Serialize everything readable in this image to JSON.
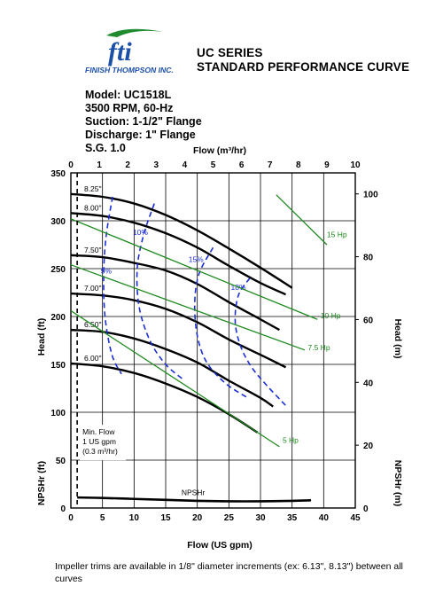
{
  "logo": {
    "mark_text": "fti",
    "company": "FINISH THOMPSON INC."
  },
  "header": {
    "series": "UC SERIES",
    "title": "STANDARD PERFORMANCE CURVE"
  },
  "specs": [
    "Model: UC1518L",
    "3500 RPM, 60-Hz",
    "Suction: 1-1/2\" Flange",
    "Discharge: 1\" Flange",
    "S.G. 1.0"
  ],
  "footnote": "Impeller trims are available in 1/8\" diameter increments (ex: 6.13\", 8.13\") between all curves",
  "colors": {
    "curve": "#000000",
    "efficiency": "#1a2fd4",
    "power": "#1e8a1e"
  },
  "chart_data": {
    "type": "line",
    "xlabel": "Flow (US gpm)",
    "x2label": "Flow (m³/hr)",
    "ylabel": "Head (ft)",
    "y2label": "Head (m)",
    "npsh_label": "NPSHr (ft)",
    "npsh_label_m": "NPSHr (m)",
    "xlim": [
      0,
      45
    ],
    "ylim": [
      0,
      350
    ],
    "x2lim": [
      0,
      10
    ],
    "y2lim": [
      0,
      106.7
    ],
    "x_ticks": [
      0,
      5,
      10,
      15,
      20,
      25,
      30,
      35,
      40,
      45
    ],
    "y_ticks": [
      0,
      50,
      100,
      150,
      200,
      250,
      300,
      350
    ],
    "x2_ticks": [
      0,
      1,
      2,
      3,
      4,
      5,
      6,
      7,
      8,
      9,
      10
    ],
    "y2_ticks": [
      20,
      40,
      60,
      80,
      100
    ],
    "grid": true,
    "impeller_curves": [
      {
        "name": "8.25\"",
        "x": [
          0,
          5,
          10,
          15,
          20,
          25,
          30,
          35
        ],
        "y": [
          328,
          325,
          318,
          306,
          290,
          271,
          251,
          230
        ]
      },
      {
        "name": "8.00\"",
        "x": [
          0,
          5,
          10,
          15,
          20,
          25,
          30,
          34
        ],
        "y": [
          308,
          305,
          298,
          287,
          272,
          253,
          235,
          223
        ]
      },
      {
        "name": "7.50\"",
        "x": [
          0,
          5,
          10,
          15,
          20,
          25,
          30,
          33
        ],
        "y": [
          264,
          262,
          256,
          248,
          234,
          215,
          197,
          186
        ]
      },
      {
        "name": "7.00\"",
        "x": [
          0,
          5,
          10,
          15,
          20,
          25,
          30,
          34
        ],
        "y": [
          224,
          222,
          217,
          208,
          194,
          176,
          160,
          147
        ]
      },
      {
        "name": "6.50\"",
        "x": [
          0,
          5,
          10,
          15,
          20,
          25,
          30,
          32
        ],
        "y": [
          186,
          184,
          177,
          166,
          152,
          133,
          115,
          106
        ]
      },
      {
        "name": "6.00\"",
        "x": [
          0,
          5,
          10,
          15,
          20,
          25,
          29.5
        ],
        "y": [
          151,
          148,
          141,
          130,
          116,
          98,
          79
        ]
      }
    ],
    "efficiency_curves": [
      {
        "name": "5%",
        "x": [
          6.6,
          5.6,
          5.2,
          5.4,
          6.5,
          8.0
        ],
        "y": [
          325,
          285,
          245,
          200,
          160,
          140
        ]
      },
      {
        "name": "10%",
        "x": [
          13.2,
          11.5,
          10.5,
          10.8,
          12.5,
          15.0,
          18.0
        ],
        "y": [
          318,
          285,
          250,
          210,
          175,
          150,
          133
        ]
      },
      {
        "name": "15%",
        "x": [
          22.5,
          20.3,
          19.6,
          20.0,
          21.5,
          24.5,
          28.0
        ],
        "y": [
          272,
          245,
          215,
          180,
          152,
          130,
          115
        ]
      },
      {
        "name": "18%",
        "x": [
          28.3,
          26.5,
          26.0,
          26.8,
          28.5,
          31.0,
          34.0
        ],
        "y": [
          240,
          222,
          195,
          170,
          148,
          128,
          107
        ]
      }
    ],
    "power_lines": [
      {
        "name": "15 Hp",
        "x": [
          32.5,
          40.5
        ],
        "y": [
          327,
          275
        ]
      },
      {
        "name": "10 Hp",
        "x": [
          0,
          39
        ],
        "y": [
          302,
          197
        ]
      },
      {
        "name": "7.5 Hp",
        "x": [
          0,
          37
        ],
        "y": [
          254,
          165
        ]
      },
      {
        "name": "5 Hp",
        "x": [
          0,
          33
        ],
        "y": [
          206,
          64
        ]
      }
    ],
    "npshr": {
      "name": "NPSHr",
      "x": [
        1,
        5,
        10,
        15,
        20,
        25,
        30,
        35,
        38
      ],
      "y": [
        11,
        10.5,
        9.5,
        8.5,
        7.5,
        7,
        7,
        7.5,
        8
      ]
    },
    "min_flow": {
      "x": 1,
      "lines": [
        "Min. Flow",
        "1 US gpm",
        "(0.3 m³/hr)"
      ]
    },
    "npsh_section_top": 50
  }
}
